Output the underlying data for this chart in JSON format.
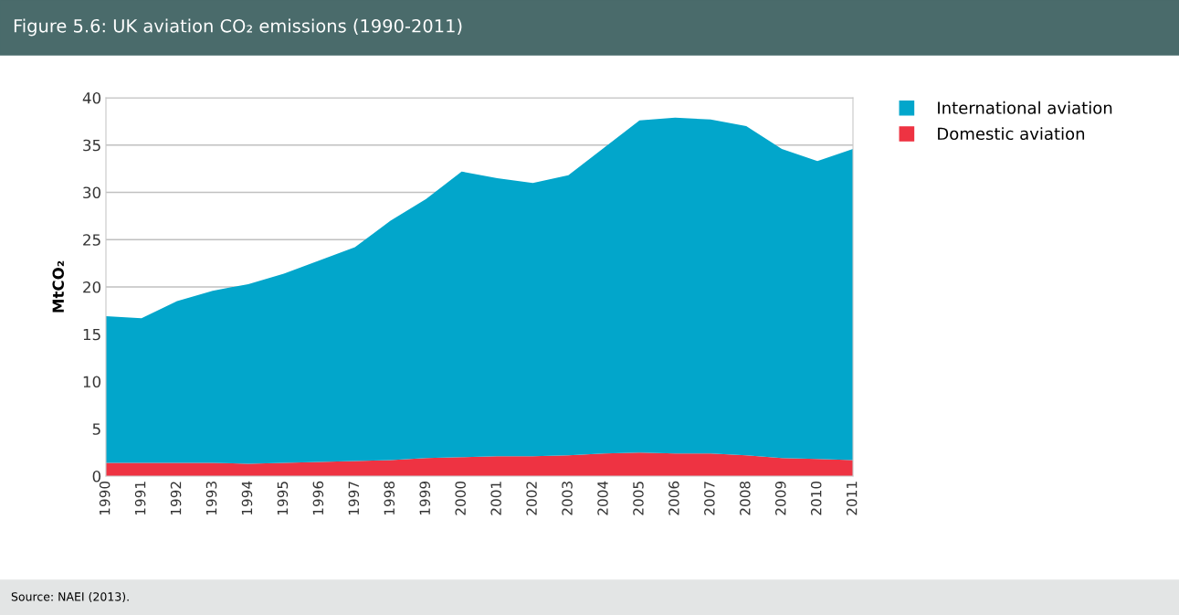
{
  "chart_data": {
    "type": "area",
    "title": "Figure 5.6: UK aviation CO₂ emissions (1990-2011)",
    "ylabel": "MtCO₂",
    "stacked": true,
    "categories": [
      "1990",
      "1991",
      "1992",
      "1993",
      "1994",
      "1995",
      "1996",
      "1997",
      "1998",
      "1999",
      "2000",
      "2001",
      "2002",
      "2003",
      "2004",
      "2005",
      "2006",
      "2007",
      "2008",
      "2009",
      "2010",
      "2011"
    ],
    "series": [
      {
        "name": "Domestic aviation",
        "color": "#ee3342",
        "values": [
          1.4,
          1.4,
          1.4,
          1.4,
          1.3,
          1.4,
          1.5,
          1.6,
          1.7,
          1.9,
          2.0,
          2.1,
          2.1,
          2.2,
          2.4,
          2.5,
          2.4,
          2.4,
          2.2,
          1.9,
          1.8,
          1.7
        ]
      },
      {
        "name": "International aviation",
        "color": "#02a6cb",
        "values": [
          15.5,
          15.3,
          17.1,
          18.2,
          19.0,
          20.0,
          21.3,
          22.6,
          25.3,
          27.4,
          30.2,
          29.4,
          28.9,
          29.6,
          32.3,
          35.1,
          35.5,
          35.3,
          34.8,
          32.7,
          31.5,
          32.9
        ]
      }
    ],
    "ylim": [
      0,
      40
    ],
    "yticks": [
      0,
      5,
      10,
      15,
      20,
      25,
      30,
      35,
      40
    ],
    "grid": "y",
    "legend": "top right",
    "annotations": [
      "Source: NAEI (2013)."
    ]
  }
}
